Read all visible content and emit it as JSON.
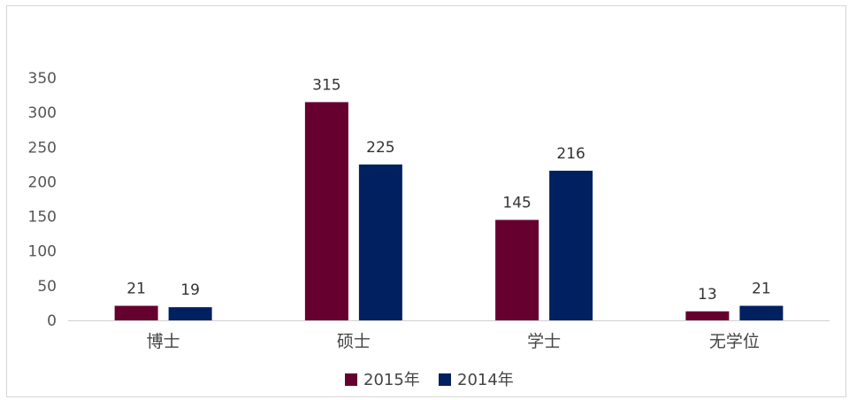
{
  "chart_data": {
    "type": "bar",
    "categories": [
      "博士",
      "硕士",
      "学士",
      "无学位"
    ],
    "series": [
      {
        "name": "2015年",
        "values": [
          21,
          315,
          145,
          13
        ],
        "color": "#66002f"
      },
      {
        "name": "2014年",
        "values": [
          19,
          225,
          216,
          21
        ],
        "color": "#002060"
      }
    ],
    "ylim": [
      0,
      350
    ],
    "yticks": [
      0,
      50,
      100,
      150,
      200,
      250,
      300,
      350
    ],
    "grid": false,
    "legend_position": "bottom",
    "data_labels": true
  }
}
